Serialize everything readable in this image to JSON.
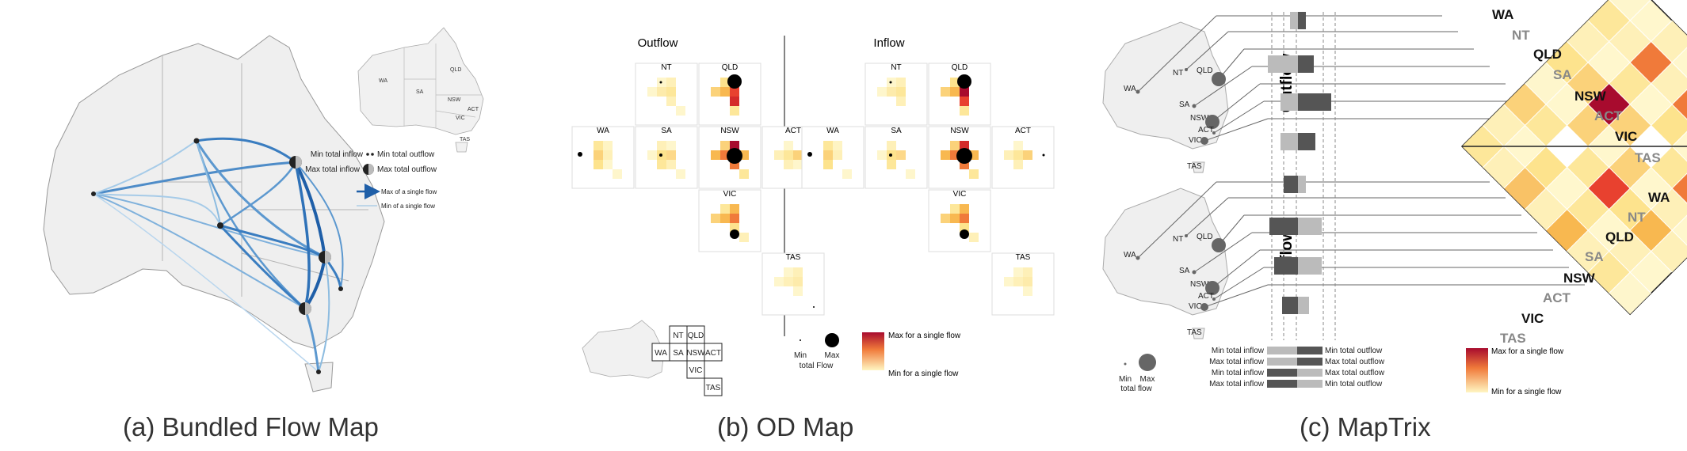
{
  "figure": {
    "captions": {
      "a": "(a) Bundled Flow Map",
      "b": "(b) OD Map",
      "c": "(c) MapTrix"
    },
    "colors": {
      "map_fill": "#efefef",
      "map_border": "#999999",
      "flow_dark": "#1f5fa8",
      "flow_light": "#8dbce0",
      "heat_low": "#fff6c2",
      "heat_mid": "#f8b850",
      "heat_high": "#a80b2e",
      "bar_dark": "#555555",
      "bar_light": "#bbbbbb"
    }
  },
  "panel_a": {
    "inset_states": [
      "WA",
      "QLD",
      "SA",
      "NSW",
      "ACT",
      "VIC",
      "TAS"
    ],
    "legend": {
      "min_total_inflow": "Min total inflow",
      "min_total_outflow": "Min total outflow",
      "max_total_inflow": "Max total inflow",
      "max_total_outflow": "Max total outflow",
      "max_single_flow": "Max of a single flow",
      "min_single_flow": "Min of a single flow"
    }
  },
  "panel_b": {
    "outflow_title": "Outflow",
    "inflow_title": "Inflow",
    "cells": [
      "NT",
      "QLD",
      "WA",
      "SA",
      "NSW",
      "ACT",
      "VIC",
      "TAS"
    ],
    "key_grid": [
      "NT",
      "QLD",
      "WA",
      "SA",
      "NSW",
      "ACT",
      "VIC",
      "TAS"
    ],
    "size_legend": {
      "min": "Min",
      "max": "Max",
      "label": "total Flow"
    },
    "color_legend": {
      "max": "Max for a single flow",
      "min": "Min for a single flow"
    }
  },
  "panel_c": {
    "row_titles": {
      "outflow": "Outflow",
      "inflow": "Inflow"
    },
    "map_states": [
      "WA",
      "NT",
      "QLD",
      "SA",
      "NSW",
      "ACT",
      "VIC",
      "TAS"
    ],
    "matrix_labels": [
      "WA",
      "NT",
      "QLD",
      "SA",
      "NSW",
      "ACT",
      "VIC",
      "TAS"
    ],
    "bar_legend": {
      "left": [
        "Min total inflow",
        "Max total inflow",
        "Min total inflow",
        "Max total inflow"
      ],
      "right": [
        "Min total outflow",
        "Max total outflow",
        "Max total outflow",
        "Min total outflow"
      ]
    },
    "size_legend": {
      "min": "Min",
      "max": "Max",
      "label": "total flow"
    },
    "color_legend": {
      "max": "Max for a single flow",
      "min": "Min for a single flow"
    }
  }
}
